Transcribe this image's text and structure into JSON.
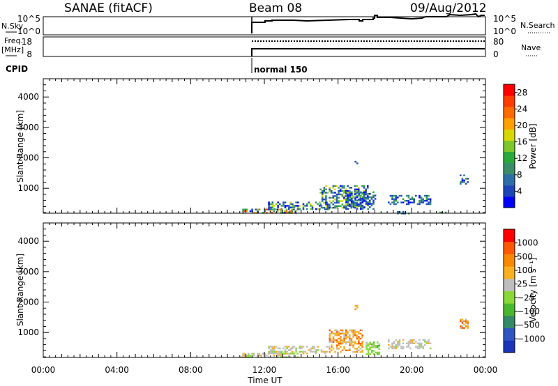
{
  "header": {
    "site": "SANAE (fitACF)",
    "beam": "Beam 08",
    "date": "09/Aug/2012"
  },
  "strips": {
    "nsky": {
      "label": "N.Sky",
      "ticks_left": [
        "10^5",
        "10^0"
      ],
      "ticks_right": [
        "10^5",
        "10^0"
      ],
      "right_label": "N.Search"
    },
    "freq": {
      "label_line1": "Freq.",
      "label_line2": "[MHz]",
      "ticks_left": [
        "18",
        "8"
      ],
      "ticks_right": [
        "80",
        "0"
      ],
      "right_label": "Nave"
    },
    "cpid": {
      "label": "CPID",
      "mode": "normal 150"
    }
  },
  "time_axis": {
    "title": "Time UT",
    "ticks": [
      "00:00",
      "04:00",
      "08:00",
      "12:00",
      "16:00",
      "20:00",
      "00:00"
    ]
  },
  "chart_data": [
    {
      "type": "heatmap",
      "title": "Power",
      "xlabel": "Time UT",
      "ylabel": "Slant Range [km]",
      "xlim": [
        0,
        24
      ],
      "ylim": [
        180,
        4600
      ],
      "yticks": [
        "1000",
        "2000",
        "3000",
        "4000"
      ],
      "colorbar": {
        "label": "Power [dB]",
        "ticks": [
          "4",
          "8",
          "12",
          "16",
          "20",
          "24",
          "28"
        ],
        "range": [
          0,
          30
        ],
        "colors": [
          "#0000ff",
          "#1c46b8",
          "#2e6ea6",
          "#3c8c6a",
          "#2aa83c",
          "#7cc82a",
          "#d8d800",
          "#ffa000",
          "#ff6a00",
          "#ff3c00",
          "#ff0000"
        ]
      },
      "regions": [
        {
          "t": [
            10.7,
            13.8
          ],
          "r": [
            190,
            330
          ],
          "level": "mixed-high"
        },
        {
          "t": [
            12.2,
            15.5
          ],
          "r": [
            300,
            560
          ],
          "level": "mixed-mid"
        },
        {
          "t": [
            15.0,
            17.6
          ],
          "r": [
            350,
            1100
          ],
          "level": "mixed-mid"
        },
        {
          "t": [
            16.4,
            18.0
          ],
          "r": [
            350,
            900
          ],
          "level": "low"
        },
        {
          "t": [
            16.9,
            17.0
          ],
          "r": [
            1780,
            1900
          ],
          "level": "low"
        },
        {
          "t": [
            18.7,
            21.0
          ],
          "r": [
            500,
            780
          ],
          "level": "low"
        },
        {
          "t": [
            19.2,
            19.8
          ],
          "r": [
            180,
            250
          ],
          "level": "low"
        },
        {
          "t": [
            22.6,
            23.0
          ],
          "r": [
            1150,
            1450
          ],
          "level": "low"
        },
        {
          "t": [
            21.5,
            21.8
          ],
          "r": [
            180,
            230
          ],
          "level": "low"
        }
      ]
    },
    {
      "type": "heatmap",
      "title": "Velocity",
      "xlabel": "Time UT",
      "ylabel": "Slant Range [km]",
      "xlim": [
        0,
        24
      ],
      "ylim": [
        180,
        4600
      ],
      "yticks": [
        "1000",
        "2000",
        "3000",
        "4000"
      ],
      "colorbar": {
        "label": "Velocity [m s⁻¹]",
        "ticks": [
          "1000",
          "500",
          "100",
          "25",
          "−25",
          "−100",
          "−500",
          "−1000"
        ],
        "colors": [
          "#1c34b8",
          "#2f55c2",
          "#348a68",
          "#4ab82c",
          "#8ad838",
          "#bebebe",
          "#f8b020",
          "#f88800",
          "#ff5800",
          "#ff0000"
        ]
      },
      "regions": [
        {
          "t": [
            10.7,
            13.8
          ],
          "r": [
            190,
            330
          ],
          "level": "near-zero"
        },
        {
          "t": [
            12.2,
            15.5
          ],
          "r": [
            300,
            560
          ],
          "level": "near-zero"
        },
        {
          "t": [
            15.5,
            17.3
          ],
          "r": [
            350,
            1100
          ],
          "level": "negative"
        },
        {
          "t": [
            17.5,
            18.2
          ],
          "r": [
            300,
            700
          ],
          "level": "positive"
        },
        {
          "t": [
            16.9,
            17.0
          ],
          "r": [
            1780,
            1900
          ],
          "level": "negative"
        },
        {
          "t": [
            18.7,
            21.0
          ],
          "r": [
            500,
            780
          ],
          "level": "near-zero"
        },
        {
          "t": [
            22.6,
            23.0
          ],
          "r": [
            1150,
            1450
          ],
          "level": "negative"
        }
      ]
    }
  ]
}
